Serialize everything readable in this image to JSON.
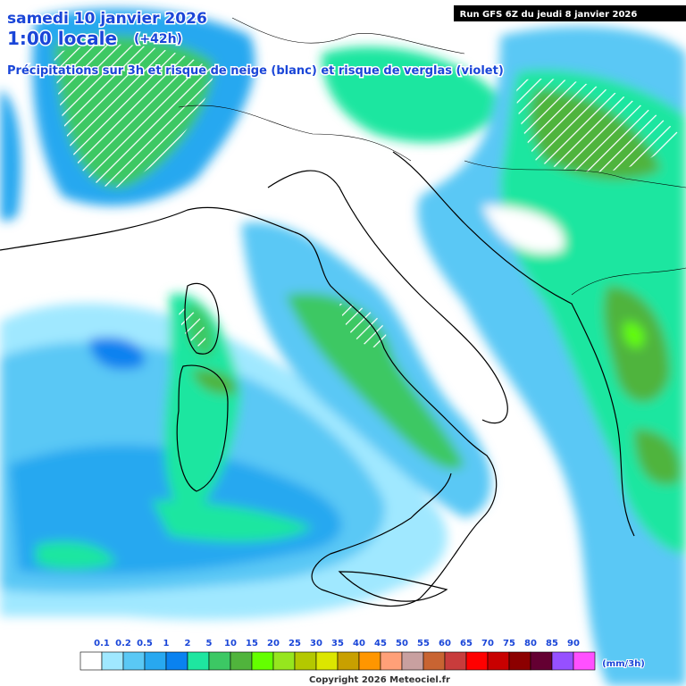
{
  "header": {
    "title": "samedi 10 janvier 2026",
    "time": "1:00 locale",
    "lead": "(+42h)",
    "subtitle": "Précipitations sur 3h et risque de neige (blanc) et risque de verglas (violet)",
    "run": "Run GFS 6Z du jeudi 8 janvier 2026"
  },
  "legend": {
    "labels": [
      "0.1",
      "0.2",
      "0.5",
      "1",
      "2",
      "5",
      "10",
      "15",
      "20",
      "25",
      "30",
      "35",
      "40",
      "45",
      "50",
      "55",
      "60",
      "65",
      "70",
      "75",
      "80",
      "85",
      "90"
    ],
    "colors": [
      "#ffffff",
      "#a0e8ff",
      "#5ac8f5",
      "#28a8f0",
      "#0a82f0",
      "#1ee6a0",
      "#3cc864",
      "#50b43c",
      "#64ff00",
      "#96e61e",
      "#b4c800",
      "#dce600",
      "#c8a000",
      "#ff9600",
      "#ffa078",
      "#c8a0a0",
      "#c86432",
      "#c83c3c",
      "#ff0000",
      "#c80000",
      "#8c0000",
      "#640032",
      "#9650ff",
      "#ff50ff"
    ],
    "unit": "(mm/3h)"
  },
  "footer": {
    "copyright": "Copyright 2026 Meteociel.fr"
  }
}
